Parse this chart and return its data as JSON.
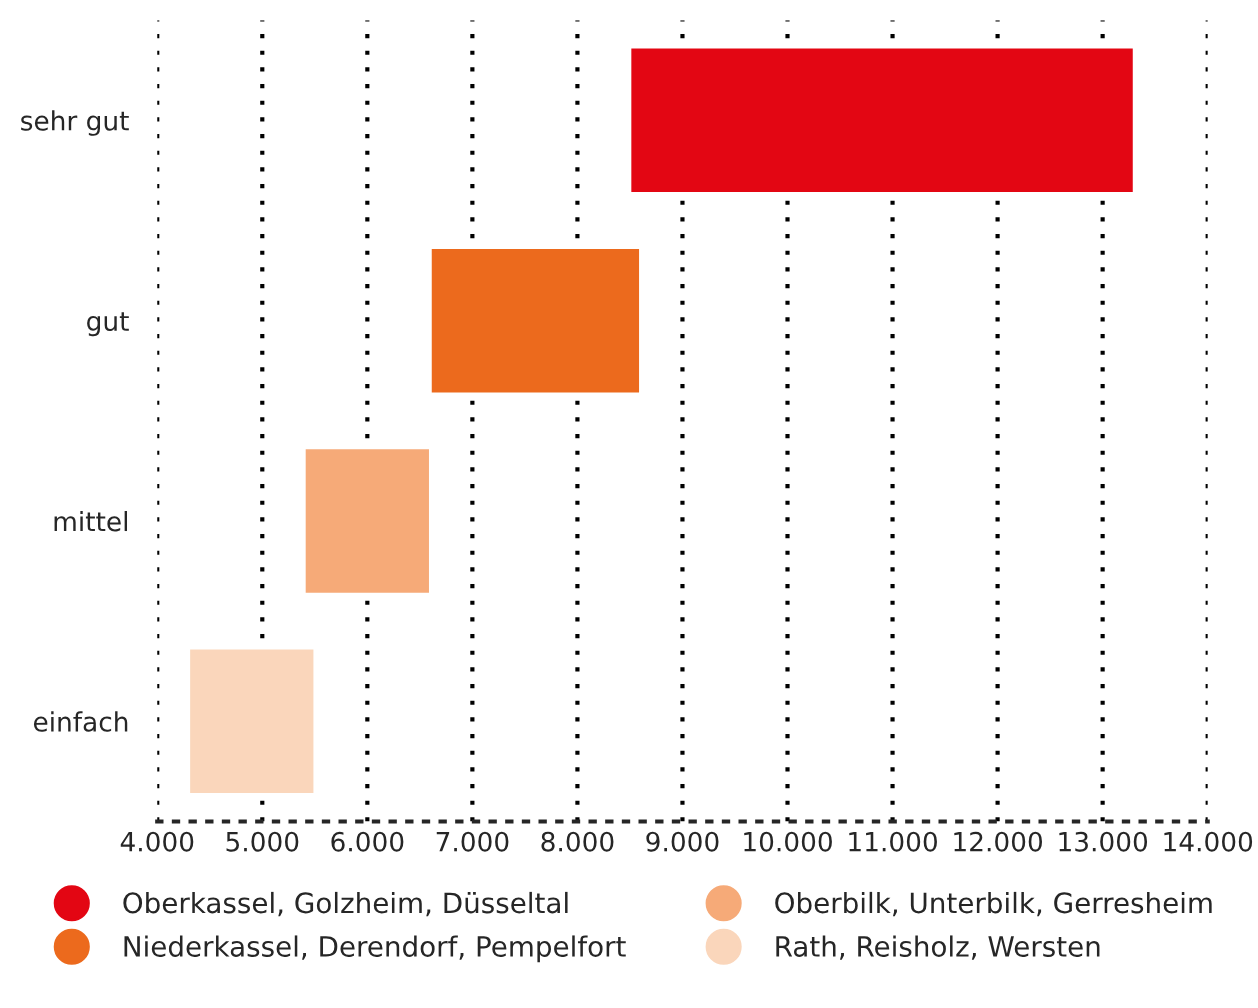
{
  "chart_data": {
    "type": "bar",
    "orientation": "horizontal",
    "categories": [
      "sehr gut",
      "gut",
      "mittel",
      "einfach"
    ],
    "series": [
      {
        "name": "Oberkassel, Golzheim, Düsseltal",
        "color": "#e30613",
        "base": [
          8500,
          null,
          null,
          null
        ],
        "values": [
          4800,
          null,
          null,
          null
        ]
      },
      {
        "name": "Niederkassel, Derendorf, Pempelfort",
        "color": "#ec6a1d",
        "base": [
          null,
          6600,
          null,
          null
        ],
        "values": [
          null,
          2000,
          null,
          null
        ]
      },
      {
        "name": "Oberbilk, Unterbilk, Gerresheim",
        "color": "#f6aa78",
        "base": [
          null,
          null,
          5400,
          null
        ],
        "values": [
          null,
          null,
          1200,
          null
        ]
      },
      {
        "name": "Rath, Reisholz, Wersten",
        "color": "#fad6bb",
        "base": [
          null,
          null,
          null,
          4300
        ],
        "values": [
          null,
          null,
          null,
          1200
        ]
      }
    ],
    "xlim": [
      4000,
      14000
    ],
    "xticks": [
      {
        "value": 4000,
        "label": "4.000"
      },
      {
        "value": 5000,
        "label": "5.000"
      },
      {
        "value": 6000,
        "label": "6.000"
      },
      {
        "value": 7000,
        "label": "7.000"
      },
      {
        "value": 8000,
        "label": "8.000"
      },
      {
        "value": 9000,
        "label": "9.000"
      },
      {
        "value": 10000,
        "label": "10.000"
      },
      {
        "value": 11000,
        "label": "11.000"
      },
      {
        "value": 12000,
        "label": "12.000"
      },
      {
        "value": 13000,
        "label": "13.000"
      },
      {
        "value": 14000,
        "label": "14.000"
      }
    ],
    "grid": "x",
    "legend": "bottom"
  }
}
